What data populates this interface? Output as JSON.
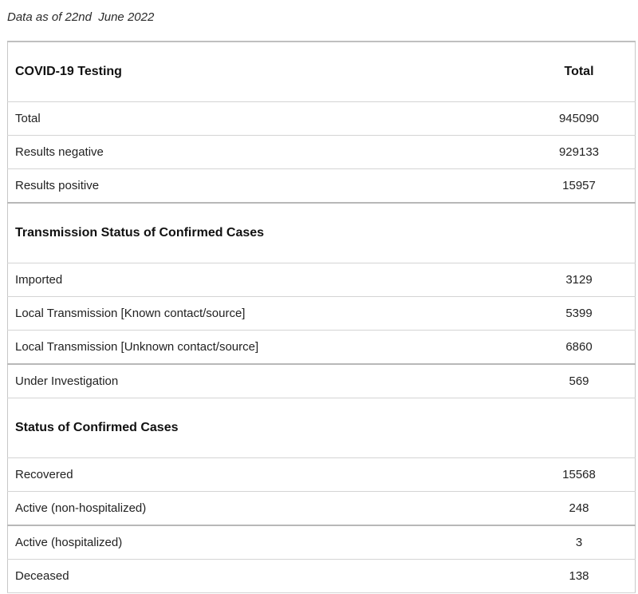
{
  "data_as_of": "Data as of 22nd  June 2022",
  "table": {
    "testing": {
      "heading": "COVID-19 Testing",
      "total_label": "Total",
      "rows": [
        {
          "label": "Total",
          "value": "945090"
        },
        {
          "label": "Results negative",
          "value": "929133"
        },
        {
          "label": "Results positive",
          "value": "15957"
        }
      ]
    },
    "transmission": {
      "heading": "Transmission Status of Confirmed Cases",
      "rows": [
        {
          "label": "Imported",
          "value": "3129"
        },
        {
          "label": "Local Transmission [Known contact/source]",
          "value": "5399"
        },
        {
          "label": "Local Transmission [Unknown contact/source]",
          "value": "6860"
        },
        {
          "label": "Under Investigation",
          "value": "569"
        }
      ]
    },
    "status": {
      "heading": "Status of Confirmed Cases",
      "rows": [
        {
          "label": "Recovered",
          "value": "15568"
        },
        {
          "label": "Active (non-hospitalized)",
          "value": "248"
        },
        {
          "label": "Active (hospitalized)",
          "value": "3"
        },
        {
          "label": "Deceased",
          "value": "138"
        }
      ]
    }
  }
}
